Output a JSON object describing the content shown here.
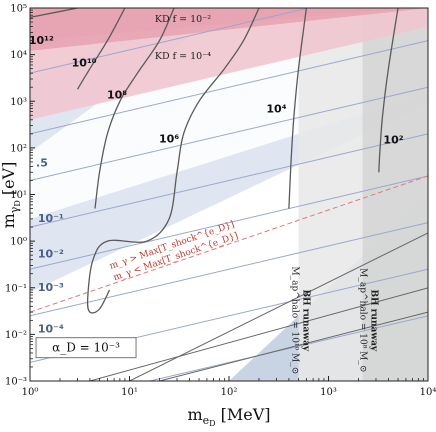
{
  "chart_data": {
    "type": "contour",
    "xlabel": "m_{e_D} [MeV]",
    "ylabel": "m_{γ_D} [eV]",
    "xscale": "log",
    "yscale": "log",
    "xlim": [
      1,
      10000
    ],
    "ylim": [
      0.001,
      100000
    ],
    "x_ticks": [
      {
        "value": 1,
        "label": "10⁰"
      },
      {
        "value": 10,
        "label": "10¹"
      },
      {
        "value": 100,
        "label": "10²"
      },
      {
        "value": 1000,
        "label": "10³"
      },
      {
        "value": 10000,
        "label": "10⁴"
      }
    ],
    "y_ticks": [
      {
        "value": 0.001,
        "label": "10⁻³"
      },
      {
        "value": 0.01,
        "label": "10⁻²"
      },
      {
        "value": 0.1,
        "label": "10⁻¹"
      },
      {
        "value": 1,
        "label": "10⁰"
      },
      {
        "value": 10,
        "label": "10¹"
      },
      {
        "value": 100,
        "label": "10²"
      },
      {
        "value": 1000,
        "label": "10³"
      },
      {
        "value": 10000,
        "label": "10⁴"
      },
      {
        "value": 100000,
        "label": "10⁵"
      }
    ],
    "dark_contours": [
      {
        "label": "10¹²",
        "points": [
          [
            1,
            63000
          ],
          [
            3,
            100000
          ]
        ],
        "label_at": [
          1.3,
          17000
        ]
      },
      {
        "label": "10¹⁰",
        "points": [
          [
            3,
            1800
          ],
          [
            4,
            5000
          ],
          [
            6,
            20000
          ],
          [
            9,
            100000
          ]
        ],
        "label_at": [
          3.5,
          5500
        ]
      },
      {
        "label": "10⁸",
        "points": [
          [
            4.5,
            5
          ],
          [
            5,
            30
          ],
          [
            6,
            200
          ],
          [
            8,
            1000
          ],
          [
            12,
            4000
          ],
          [
            20,
            20000
          ],
          [
            28,
            100000
          ]
        ],
        "label_at": [
          7.5,
          1150
        ]
      },
      {
        "label": "10⁶",
        "points": [
          [
            6.3,
            0.09
          ],
          [
            5,
            0.035
          ],
          [
            4,
            0.03
          ],
          [
            3.8,
            0.06
          ],
          [
            4.3,
            0.4
          ],
          [
            6,
            1
          ],
          [
            15,
            1
          ],
          [
            25,
            3
          ],
          [
            30,
            30
          ],
          [
            35,
            200
          ],
          [
            50,
            1000
          ],
          [
            90,
            5000
          ],
          [
            140,
            20000
          ],
          [
            200,
            100000
          ]
        ],
        "label_at": [
          25,
          130
        ]
      },
      {
        "label": "10⁴",
        "points": [
          [
            600,
            100000
          ],
          [
            500,
            5000
          ],
          [
            450,
            500
          ],
          [
            420,
            50
          ],
          [
            400,
            5
          ]
        ],
        "label_at": [
          300,
          580
        ]
      },
      {
        "label": "10²",
        "points": [
          [
            5000,
            100000
          ],
          [
            4000,
            5000
          ],
          [
            3500,
            500
          ],
          [
            3300,
            100
          ],
          [
            3200,
            30
          ]
        ],
        "label_at": [
          4500,
          125
        ]
      }
    ],
    "blue_contours": [
      {
        "label": ".5",
        "slope": 0.5,
        "y_at_x1": 4000,
        "label_at": [
          1.15,
          40
        ]
      },
      {
        "label": "10⁻¹",
        "slope": 0.5,
        "y_at_x1": 200,
        "label_at": [
          1.2,
          2.6
        ]
      },
      {
        "label": "10⁻²",
        "slope": 0.5,
        "y_at_x1": 20,
        "label_at": [
          1.2,
          0.45
        ]
      },
      {
        "label": "10⁻³",
        "slope": 0.5,
        "y_at_x1": 2,
        "label_at": [
          1.2,
          0.085
        ]
      },
      {
        "label": "10⁻⁴",
        "slope": 0.5,
        "y_at_x1": 0.25,
        "label_at": [
          1.2,
          0.011
        ]
      },
      {
        "label": "",
        "slope": 0.5,
        "y_at_x1": 0.025,
        "label_at": null
      },
      {
        "label": "",
        "slope": 0.5,
        "y_at_x1": 0.0025,
        "label_at": null
      },
      {
        "label": "",
        "slope": 0.5,
        "y_at_x1": 0.00025,
        "label_at": null
      }
    ],
    "gray_lines": [
      {
        "points": [
          [
            10,
            0.001
          ],
          [
            10000,
            1.5
          ]
        ]
      },
      {
        "points": [
          [
            4,
            0.001
          ],
          [
            10000,
            0.1
          ]
        ]
      },
      {
        "points": [
          [
            20,
            0.001
          ],
          [
            10000,
            0.03
          ]
        ]
      }
    ],
    "regions": {
      "kd_f2": {
        "label": "KD   f = 10⁻²",
        "color": "#e7a4b2"
      },
      "kd_f4": {
        "label": "KD   f = 10⁻⁴",
        "color": "#f1c6d0"
      },
      "blue_upper": {
        "color": "#dfe6f1"
      },
      "blue_lower": {
        "color": "#c8d3e4"
      },
      "bh_1e10": {
        "label_line1": "BH runaway",
        "label_line2": "M_ap^halo = 10¹⁰ M_⊙",
        "xmin": 500,
        "color": "#e8e8e8"
      },
      "bh_1e8": {
        "label_line1": "BH runaway",
        "label_line2": "M_ap^halo = 10⁸ M_⊙",
        "xmin": 2200,
        "color": "#d2d2d2"
      }
    },
    "red_line": {
      "points": [
        [
          1,
          0.03
        ],
        [
          10000,
          25
        ]
      ],
      "label_above": "m_γ > Max[T_shock^{e_D}]",
      "label_below": "m_γ < Max[T_shock^{e_D}]"
    },
    "legend_box": {
      "text": "α_D = 10⁻³"
    }
  }
}
